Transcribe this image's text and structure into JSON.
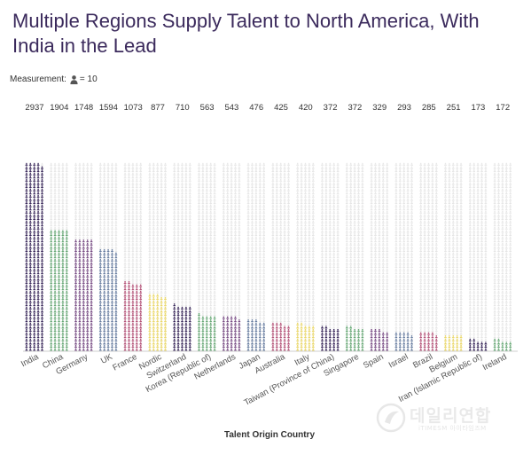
{
  "title": "Multiple Regions Supply Talent to North America, With India in the Lead",
  "measurement": {
    "label": "Measurement:",
    "unit": "= 10",
    "icon": "person-icon"
  },
  "watermark": {
    "text": "데일리연합",
    "subtext": "iTIMESM 아이타임즈M"
  },
  "chart_data": {
    "type": "bar",
    "subtype": "pictogram",
    "xlabel": "Talent Origin Country",
    "ylabel": "",
    "unit_per_icon": 10,
    "max_value": 2937,
    "categories": [
      "India",
      "China",
      "Germany",
      "UK",
      "France",
      "Nordic",
      "Switzerland",
      "Korea (Republic of)",
      "Netherlands",
      "Japan",
      "Australia",
      "Italy",
      "Taiwan (Province of China)",
      "Singapore",
      "Spain",
      "Israel",
      "Brazil",
      "Belgium",
      "Iran (Islamic Republic of)",
      "Ireland"
    ],
    "values": [
      2937,
      1904,
      1748,
      1594,
      1073,
      877,
      710,
      563,
      543,
      476,
      425,
      420,
      372,
      372,
      329,
      293,
      285,
      251,
      173,
      172
    ],
    "colors": [
      "#3b2a5c",
      "#6aaa78",
      "#7a4e86",
      "#6a7fa2",
      "#b6557a",
      "#ecd96a",
      "#3b2a5c",
      "#6aaa78",
      "#7a4e86",
      "#6a7fa2",
      "#b6557a",
      "#ecd96a",
      "#3b2a5c",
      "#6aaa78",
      "#7a4e86",
      "#6a7fa2",
      "#b6557a",
      "#ecd96a",
      "#3b2a5c",
      "#6aaa78"
    ],
    "background_icon_color": "#e6e6e6",
    "grid": false,
    "legend": "none"
  }
}
